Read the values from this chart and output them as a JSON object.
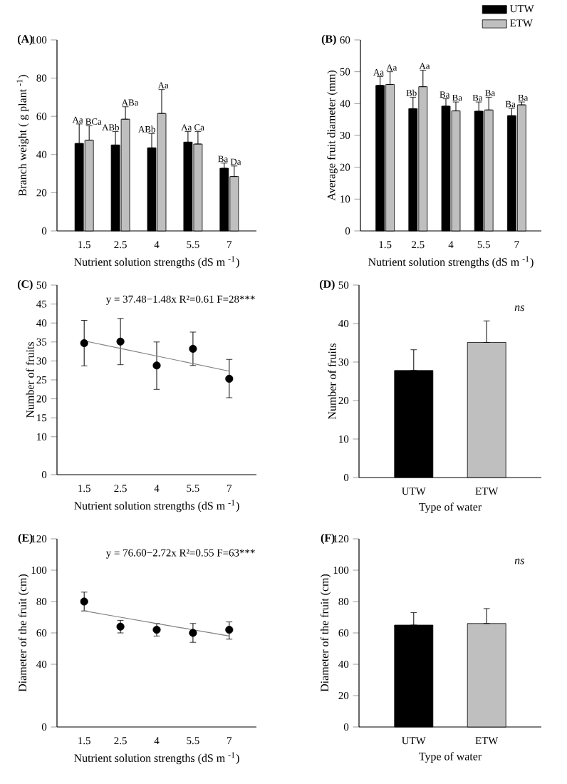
{
  "chart_data": [
    {
      "type": "bar",
      "title": "(A)",
      "xlabel": "Nutrient solution strengths  (dS m $^{-1}$)",
      "ylabel": "Branch weight ( g plant $^{-1}$)",
      "categories": [
        "1.5",
        "2.5",
        "4",
        "5.5",
        "7"
      ],
      "ylim": [
        0,
        100
      ],
      "yticks": [
        0,
        20,
        40,
        60,
        80,
        100
      ],
      "series": [
        {
          "color": "#000000",
          "values": [
            45.8,
            45,
            43.5,
            46.5,
            32.8
          ],
          "errors": [
            [
              45.8,
              56
            ],
            [
              45,
              52
            ],
            [
              43.5,
              51
            ],
            [
              46.5,
              52
            ],
            [
              32.8,
              35.5
            ]
          ],
          "value_labels": [
            "Aa",
            "ABb",
            "ABb",
            "Aa",
            "Ba"
          ]
        },
        {
          "color": "#bfbfbf",
          "values": [
            47.5,
            58.5,
            61.5,
            45.5,
            28.5
          ],
          "errors": [
            [
              47.5,
              55
            ],
            [
              58.5,
              65
            ],
            [
              61.5,
              74
            ],
            [
              45.5,
              52
            ],
            [
              28.5,
              34
            ]
          ],
          "value_labels": [
            "BCa",
            "ABa",
            "Aa",
            "Ca",
            "Da"
          ]
        }
      ]
    },
    {
      "type": "bar",
      "title": "(B)",
      "xlabel": "Nutrient solution strengths  (dS m $^{-1}$)",
      "ylabel": "Average fruit diameter  (mm)",
      "categories": [
        "1.5",
        "2.5",
        "4",
        "5.5",
        "7"
      ],
      "ylim": [
        0,
        60
      ],
      "yticks": [
        0,
        10,
        20,
        30,
        40,
        50,
        60
      ],
      "legend": "top right",
      "series": [
        {
          "name": "UTW",
          "color": "#000000",
          "values": [
            45.7,
            38.4,
            39.2,
            37.6,
            36.2
          ],
          "errors": [
            [
              45.7,
              48.5
            ],
            [
              38.4,
              42
            ],
            [
              39.2,
              41.5
            ],
            [
              37.6,
              40.5
            ],
            [
              36.2,
              38.5
            ]
          ],
          "value_labels": [
            "Aa",
            "Bb",
            "Ba",
            "Ba",
            "Ba"
          ]
        },
        {
          "name": "ETW",
          "color": "#bfbfbf",
          "values": [
            46,
            45.3,
            37.7,
            38,
            39.6
          ],
          "errors": [
            [
              46,
              50
            ],
            [
              45.3,
              50.5
            ],
            [
              37.7,
              40.5
            ],
            [
              38,
              42
            ],
            [
              39.6,
              40.5
            ]
          ],
          "value_labels": [
            "Aa",
            "Aa",
            "Ba",
            "Ba",
            "Ba"
          ]
        }
      ]
    },
    {
      "type": "scatter",
      "title": "(C)",
      "xlabel": "Nutrient solution strengths  (dS m $^{-1}$)",
      "ylabel": "Number of fruits",
      "categories": [
        "1.5",
        "2.5",
        "4",
        "5.5",
        "7"
      ],
      "ylim": [
        0,
        50
      ],
      "yticks": [
        0,
        10,
        15,
        20,
        25,
        30,
        35,
        40,
        45,
        50
      ],
      "annotations": [
        "y = 37.48−1.48x R²=0.61 F=28***"
      ],
      "marker": "circle",
      "series": [
        {
          "color": "#000000",
          "values": [
            34.7,
            35.1,
            28.8,
            33.2,
            25.3
          ],
          "errors": [
            [
              28.7,
              40.7
            ],
            [
              29,
              41.2
            ],
            [
              22.5,
              35
            ],
            [
              28.8,
              37.6
            ],
            [
              20.3,
              30.4
            ]
          ]
        },
        {
          "type": "line",
          "color": "#808080",
          "marker": "none",
          "values": [
            35.3,
            33.3,
            31.3,
            29.3,
            27.3
          ]
        }
      ]
    },
    {
      "type": "bar",
      "title": "(D)",
      "xlabel": "Type of water",
      "ylabel": "Number of fruits",
      "categories": [
        "UTW",
        "ETW"
      ],
      "ylim": [
        0,
        50
      ],
      "yticks": [
        0,
        10,
        20,
        30,
        40,
        50
      ],
      "annotations": [
        "ns"
      ],
      "values": [
        27.8,
        35.1
      ],
      "colors": [
        "#000000",
        "#bfbfbf"
      ],
      "errors": [
        [
          27.8,
          33.2
        ],
        [
          35.1,
          40.7
        ]
      ]
    },
    {
      "type": "scatter",
      "title": "(E)",
      "xlabel": "Nutrient solution strengths  (dS m $^{-1}$)",
      "ylabel": "Diameter of the fruit (cm)",
      "categories": [
        "1.5",
        "2.5",
        "4",
        "5.5",
        "7"
      ],
      "ylim": [
        0,
        120
      ],
      "yticks": [
        0,
        40,
        60,
        80,
        100,
        120
      ],
      "annotations": [
        "y = 76.60−2.72x R²=0.55 F=63***"
      ],
      "marker": "circle",
      "series": [
        {
          "color": "#000000",
          "values": [
            80,
            64,
            62,
            60,
            62
          ],
          "errors": [
            [
              74,
              86
            ],
            [
              60,
              68
            ],
            [
              58,
              66
            ],
            [
              54,
              66
            ],
            [
              56,
              67
            ]
          ]
        },
        {
          "type": "line",
          "color": "#808080",
          "marker": "none",
          "values": [
            74,
            70,
            66,
            62,
            58
          ]
        }
      ]
    },
    {
      "type": "bar",
      "title": "(F)",
      "xlabel": "Type of water",
      "ylabel": "Diameter of the fruit (cm)",
      "categories": [
        "UTW",
        "ETW"
      ],
      "ylim": [
        0,
        120
      ],
      "yticks": [
        0,
        20,
        40,
        60,
        80,
        100,
        120
      ],
      "annotations": [
        "ns"
      ],
      "values": [
        65,
        66
      ],
      "colors": [
        "#000000",
        "#bfbfbf"
      ],
      "errors": [
        [
          65,
          73
        ],
        [
          66,
          75.5
        ]
      ]
    }
  ]
}
